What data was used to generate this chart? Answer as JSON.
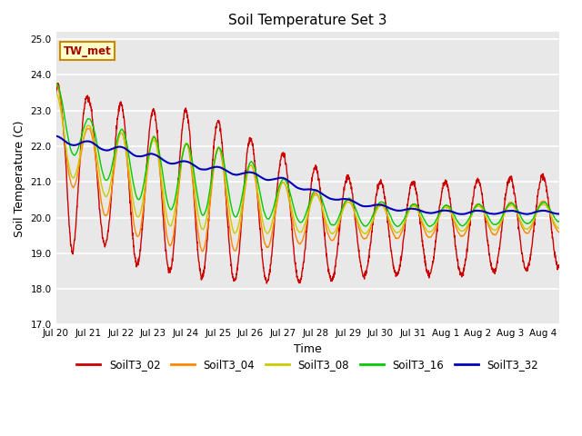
{
  "title": "Soil Temperature Set 3",
  "xlabel": "Time",
  "ylabel": "Soil Temperature (C)",
  "ylim": [
    17.0,
    25.2
  ],
  "yticks": [
    17.0,
    18.0,
    19.0,
    20.0,
    21.0,
    22.0,
    23.0,
    24.0,
    25.0
  ],
  "bg_color": "#e8e8e8",
  "series_colors": {
    "SoilT3_02": "#cc0000",
    "SoilT3_04": "#ff8800",
    "SoilT3_08": "#cccc00",
    "SoilT3_16": "#00cc00",
    "SoilT3_32": "#0000bb"
  },
  "xtick_labels": [
    "Jul 20",
    "Jul 21",
    "Jul 22",
    "Jul 23",
    "Jul 24",
    "Jul 25",
    "Jul 26",
    "Jul 27",
    "Jul 28",
    "Jul 29",
    "Jul 30",
    "Jul 31",
    "Aug 1",
    "Aug 2",
    "Aug 3",
    "Aug 4"
  ],
  "num_days": 15.5,
  "points_per_day": 144,
  "tw_met_label": "TW_met"
}
